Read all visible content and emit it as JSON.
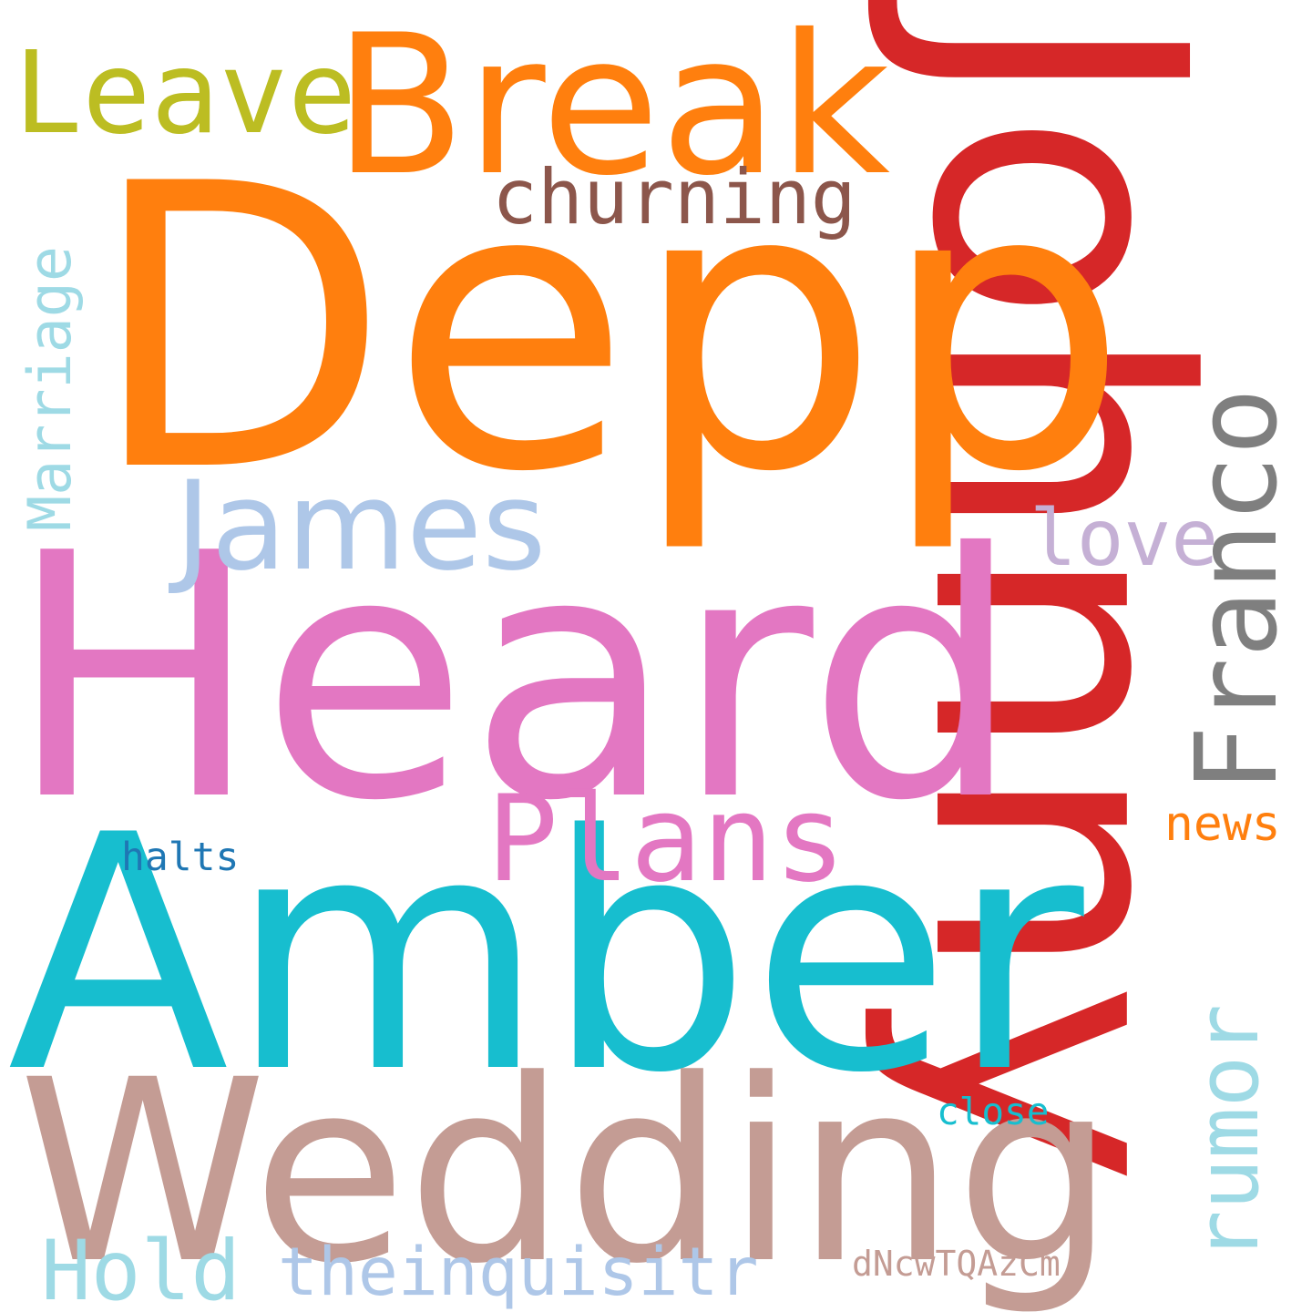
{
  "words": {
    "johnny": {
      "text": "Johnny",
      "color": "#d62728"
    },
    "depp": {
      "text": "Depp",
      "color": "#ff7f0e"
    },
    "heard": {
      "text": "Heard",
      "color": "#e377c2"
    },
    "amber": {
      "text": "Amber",
      "color": "#17becf"
    },
    "wedding": {
      "text": "Wedding",
      "color": "#c49c94"
    },
    "break": {
      "text": "Break",
      "color": "#ff7f0e"
    },
    "leave": {
      "text": "Leave",
      "color": "#bcbd22"
    },
    "churning": {
      "text": "churning",
      "color": "#8c564b"
    },
    "james": {
      "text": "James",
      "color": "#aec7e8"
    },
    "marriage": {
      "text": "Marriage",
      "color": "#9edae5"
    },
    "franco": {
      "text": "Franco",
      "color": "#7f7f7f"
    },
    "love": {
      "text": "love",
      "color": "#c5b0d5"
    },
    "plans": {
      "text": "Plans",
      "color": "#e377c2"
    },
    "halts": {
      "text": "halts",
      "color": "#1f77b4"
    },
    "news": {
      "text": "news",
      "color": "#ff7f0e"
    },
    "rumor": {
      "text": "rumor",
      "color": "#9edae5"
    },
    "close": {
      "text": "close",
      "color": "#17becf"
    },
    "hold": {
      "text": "Hold",
      "color": "#9edae5"
    },
    "theinquisitr": {
      "text": "theinquisitr",
      "color": "#aec7e8"
    },
    "dncwtqazcm": {
      "text": "dNcwTQAzCm",
      "color": "#c49c94"
    }
  }
}
